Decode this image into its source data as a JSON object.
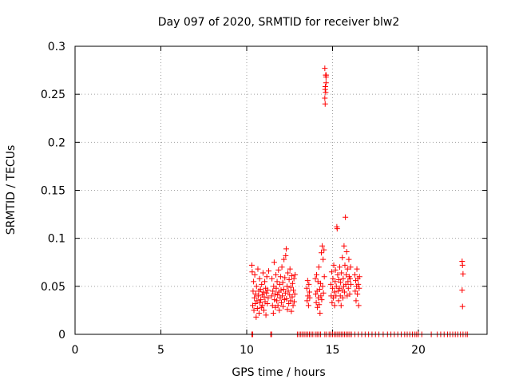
{
  "chart_data": {
    "type": "scatter",
    "title": "Day 097 of 2020, SRMTID for receiver blw2",
    "xlabel": "GPS time / hours",
    "ylabel": "SRMTID / TECUs",
    "xlim": [
      0,
      24
    ],
    "ylim": [
      0,
      0.3
    ],
    "grid": true,
    "marker": "plus",
    "colors": {
      "series": "#ff0000",
      "grid": "#a0a0a0",
      "axis": "#000000"
    },
    "x_ticks": [
      {
        "value": 0,
        "label": "0"
      },
      {
        "value": 5,
        "label": "5"
      },
      {
        "value": 10,
        "label": "10"
      },
      {
        "value": 15,
        "label": "15"
      },
      {
        "value": 20,
        "label": "20"
      }
    ],
    "y_ticks": [
      {
        "value": 0,
        "label": "0"
      },
      {
        "value": 0.05,
        "label": "0.05"
      },
      {
        "value": 0.1,
        "label": "0.1"
      },
      {
        "value": 0.15,
        "label": "0.15"
      },
      {
        "value": 0.2,
        "label": "0.2"
      },
      {
        "value": 0.25,
        "label": "0.25"
      },
      {
        "value": 0.3,
        "label": "0.3"
      }
    ],
    "series": [
      {
        "name": "SRMTID",
        "points": [
          [
            10.3,
            0.072
          ],
          [
            10.32,
            0.065
          ],
          [
            10.35,
            0.03
          ],
          [
            10.37,
            0.045
          ],
          [
            10.4,
            0.055
          ],
          [
            10.42,
            0.025
          ],
          [
            10.45,
            0.038
          ],
          [
            10.47,
            0.062
          ],
          [
            10.5,
            0.032
          ],
          [
            10.52,
            0.042
          ],
          [
            10.55,
            0.018
          ],
          [
            10.57,
            0.05
          ],
          [
            10.6,
            0.035
          ],
          [
            10.62,
            0.027
          ],
          [
            10.65,
            0.068
          ],
          [
            10.67,
            0.04
          ],
          [
            10.7,
            0.045
          ],
          [
            10.72,
            0.022
          ],
          [
            10.75,
            0.058
          ],
          [
            10.77,
            0.033
          ],
          [
            10.8,
            0.047
          ],
          [
            10.82,
            0.036
          ],
          [
            10.85,
            0.028
          ],
          [
            10.87,
            0.052
          ],
          [
            10.9,
            0.041
          ],
          [
            10.92,
            0.03
          ],
          [
            10.95,
            0.064
          ],
          [
            10.97,
            0.044
          ],
          [
            11.0,
            0.025
          ],
          [
            11.02,
            0.039
          ],
          [
            11.05,
            0.055
          ],
          [
            11.07,
            0.034
          ],
          [
            11.1,
            0.048
          ],
          [
            11.12,
            0.02
          ],
          [
            11.15,
            0.043
          ],
          [
            11.17,
            0.06
          ],
          [
            11.2,
            0.032
          ],
          [
            11.22,
            0.046
          ],
          [
            11.25,
            0.038
          ],
          [
            11.28,
            0.066
          ],
          [
            11.45,
            0.04
          ],
          [
            11.47,
            0.058
          ],
          [
            11.5,
            0.03
          ],
          [
            11.52,
            0.045
          ],
          [
            11.55,
            0.022
          ],
          [
            11.57,
            0.05
          ],
          [
            11.6,
            0.075
          ],
          [
            11.62,
            0.036
          ],
          [
            11.65,
            0.042
          ],
          [
            11.67,
            0.028
          ],
          [
            11.7,
            0.062
          ],
          [
            11.72,
            0.048
          ],
          [
            11.75,
            0.035
          ],
          [
            11.77,
            0.055
          ],
          [
            11.8,
            0.041
          ],
          [
            11.82,
            0.03
          ],
          [
            11.85,
            0.067
          ],
          [
            11.87,
            0.044
          ],
          [
            11.9,
            0.025
          ],
          [
            11.92,
            0.052
          ],
          [
            11.95,
            0.038
          ],
          [
            11.97,
            0.06
          ],
          [
            12.0,
            0.046
          ],
          [
            12.02,
            0.033
          ],
          [
            12.05,
            0.07
          ],
          [
            12.07,
            0.04
          ],
          [
            12.1,
            0.054
          ],
          [
            12.12,
            0.029
          ],
          [
            12.15,
            0.047
          ],
          [
            12.17,
            0.078
          ],
          [
            12.2,
            0.036
          ],
          [
            12.22,
            0.059
          ],
          [
            12.25,
            0.043
          ],
          [
            12.27,
            0.082
          ],
          [
            12.3,
            0.089
          ],
          [
            12.32,
            0.037
          ],
          [
            12.35,
            0.05
          ],
          [
            12.37,
            0.026
          ],
          [
            12.4,
            0.064
          ],
          [
            12.42,
            0.045
          ],
          [
            12.45,
            0.032
          ],
          [
            12.47,
            0.057
          ],
          [
            12.5,
            0.041
          ],
          [
            12.52,
            0.068
          ],
          [
            12.55,
            0.035
          ],
          [
            12.57,
            0.049
          ],
          [
            12.6,
            0.024
          ],
          [
            12.62,
            0.061
          ],
          [
            12.65,
            0.039
          ],
          [
            12.67,
            0.053
          ],
          [
            12.7,
            0.03
          ],
          [
            12.72,
            0.046
          ],
          [
            12.75,
            0.058
          ],
          [
            12.77,
            0.034
          ],
          [
            12.8,
            0.042
          ],
          [
            12.82,
            0.062
          ],
          [
            13.5,
            0.048
          ],
          [
            13.52,
            0.035
          ],
          [
            13.55,
            0.056
          ],
          [
            13.57,
            0.04
          ],
          [
            13.6,
            0.03
          ],
          [
            13.62,
            0.052
          ],
          [
            13.65,
            0.044
          ],
          [
            13.67,
            0.038
          ],
          [
            14.0,
            0.058
          ],
          [
            14.02,
            0.042
          ],
          [
            14.05,
            0.033
          ],
          [
            14.07,
            0.062
          ],
          [
            14.1,
            0.045
          ],
          [
            14.12,
            0.028
          ],
          [
            14.15,
            0.055
          ],
          [
            14.17,
            0.038
          ],
          [
            14.2,
            0.07
          ],
          [
            14.22,
            0.031
          ],
          [
            14.25,
            0.047
          ],
          [
            14.27,
            0.022
          ],
          [
            14.3,
            0.053
          ],
          [
            14.32,
            0.04
          ],
          [
            14.35,
            0.085
          ],
          [
            14.37,
            0.036
          ],
          [
            14.4,
            0.092
          ],
          [
            14.42,
            0.05
          ],
          [
            14.45,
            0.078
          ],
          [
            14.47,
            0.043
          ],
          [
            14.5,
            0.088
          ],
          [
            14.52,
            0.06
          ],
          [
            14.55,
            0.246
          ],
          [
            14.57,
            0.255
          ],
          [
            14.6,
            0.27
          ],
          [
            14.62,
            0.262
          ],
          [
            14.55,
            0.277
          ],
          [
            14.57,
            0.24
          ],
          [
            14.6,
            0.252
          ],
          [
            14.62,
            0.268
          ],
          [
            14.58,
            0.258
          ],
          [
            14.63,
            0.27
          ],
          [
            14.9,
            0.052
          ],
          [
            14.92,
            0.04
          ],
          [
            14.95,
            0.065
          ],
          [
            14.97,
            0.033
          ],
          [
            15.0,
            0.048
          ],
          [
            15.02,
            0.058
          ],
          [
            15.05,
            0.038
          ],
          [
            15.07,
            0.072
          ],
          [
            15.1,
            0.044
          ],
          [
            15.12,
            0.03
          ],
          [
            15.15,
            0.055
          ],
          [
            15.17,
            0.067
          ],
          [
            15.2,
            0.04
          ],
          [
            15.22,
            0.05
          ],
          [
            15.25,
            0.112
          ],
          [
            15.27,
            0.11
          ],
          [
            15.3,
            0.062
          ],
          [
            15.32,
            0.045
          ],
          [
            15.35,
            0.035
          ],
          [
            15.37,
            0.057
          ],
          [
            15.4,
            0.048
          ],
          [
            15.42,
            0.07
          ],
          [
            15.45,
            0.04
          ],
          [
            15.47,
            0.054
          ],
          [
            15.5,
            0.03
          ],
          [
            15.52,
            0.064
          ],
          [
            15.55,
            0.046
          ],
          [
            15.57,
            0.08
          ],
          [
            15.6,
            0.038
          ],
          [
            15.62,
            0.058
          ],
          [
            15.65,
            0.05
          ],
          [
            15.67,
            0.092
          ],
          [
            15.7,
            0.044
          ],
          [
            15.72,
            0.072
          ],
          [
            15.75,
            0.122
          ],
          [
            15.77,
            0.052
          ],
          [
            15.8,
            0.062
          ],
          [
            15.82,
            0.086
          ],
          [
            15.85,
            0.04
          ],
          [
            15.87,
            0.068
          ],
          [
            15.9,
            0.055
          ],
          [
            15.92,
            0.048
          ],
          [
            15.95,
            0.078
          ],
          [
            15.97,
            0.06
          ],
          [
            16.0,
            0.042
          ],
          [
            16.02,
            0.058
          ],
          [
            16.05,
            0.07
          ],
          [
            16.07,
            0.052
          ],
          [
            16.3,
            0.062
          ],
          [
            16.32,
            0.045
          ],
          [
            16.35,
            0.056
          ],
          [
            16.37,
            0.035
          ],
          [
            16.4,
            0.05
          ],
          [
            16.42,
            0.068
          ],
          [
            16.45,
            0.042
          ],
          [
            16.47,
            0.058
          ],
          [
            16.5,
            0.052
          ],
          [
            16.52,
            0.03
          ],
          [
            16.55,
            0.048
          ],
          [
            16.57,
            0.06
          ],
          [
            22.55,
            0.076
          ],
          [
            22.57,
            0.072
          ],
          [
            22.6,
            0.063
          ],
          [
            22.55,
            0.046
          ],
          [
            22.57,
            0.029
          ],
          [
            10.3,
            0.0
          ],
          [
            10.35,
            0.0
          ],
          [
            11.4,
            0.0
          ],
          [
            11.45,
            0.0
          ],
          [
            12.95,
            0.0
          ],
          [
            13.05,
            0.0
          ],
          [
            13.15,
            0.0
          ],
          [
            13.25,
            0.0
          ],
          [
            13.35,
            0.0
          ],
          [
            13.45,
            0.0
          ],
          [
            13.55,
            0.0
          ],
          [
            13.65,
            0.0
          ],
          [
            13.75,
            0.0
          ],
          [
            13.85,
            0.0
          ],
          [
            14.0,
            0.0
          ],
          [
            14.1,
            0.0
          ],
          [
            14.2,
            0.0
          ],
          [
            14.3,
            0.0
          ],
          [
            14.55,
            0.0
          ],
          [
            14.65,
            0.0
          ],
          [
            14.8,
            0.0
          ],
          [
            14.9,
            0.0
          ],
          [
            15.0,
            0.0
          ],
          [
            15.1,
            0.0
          ],
          [
            15.2,
            0.0
          ],
          [
            15.3,
            0.0
          ],
          [
            15.4,
            0.0
          ],
          [
            15.5,
            0.0
          ],
          [
            15.6,
            0.0
          ],
          [
            15.7,
            0.0
          ],
          [
            15.8,
            0.0
          ],
          [
            15.9,
            0.0
          ],
          [
            16.0,
            0.0
          ],
          [
            16.1,
            0.0
          ],
          [
            16.3,
            0.0
          ],
          [
            16.5,
            0.0
          ],
          [
            16.7,
            0.0
          ],
          [
            16.9,
            0.0
          ],
          [
            17.1,
            0.0
          ],
          [
            17.3,
            0.0
          ],
          [
            17.5,
            0.0
          ],
          [
            17.7,
            0.0
          ],
          [
            17.95,
            0.0
          ],
          [
            18.2,
            0.0
          ],
          [
            18.4,
            0.0
          ],
          [
            18.6,
            0.0
          ],
          [
            18.8,
            0.0
          ],
          [
            19.0,
            0.0
          ],
          [
            19.2,
            0.0
          ],
          [
            19.35,
            0.0
          ],
          [
            19.5,
            0.0
          ],
          [
            19.65,
            0.0
          ],
          [
            19.8,
            0.0
          ],
          [
            19.9,
            0.0
          ],
          [
            20.0,
            0.0
          ],
          [
            20.2,
            0.0
          ],
          [
            20.75,
            0.0
          ],
          [
            21.1,
            0.0
          ],
          [
            21.3,
            0.0
          ],
          [
            21.5,
            0.0
          ],
          [
            21.7,
            0.0
          ],
          [
            21.85,
            0.0
          ],
          [
            22.0,
            0.0
          ],
          [
            22.15,
            0.0
          ],
          [
            22.3,
            0.0
          ],
          [
            22.45,
            0.0
          ],
          [
            22.6,
            0.0
          ],
          [
            22.75,
            0.0
          ],
          [
            22.85,
            0.0
          ]
        ]
      }
    ]
  }
}
